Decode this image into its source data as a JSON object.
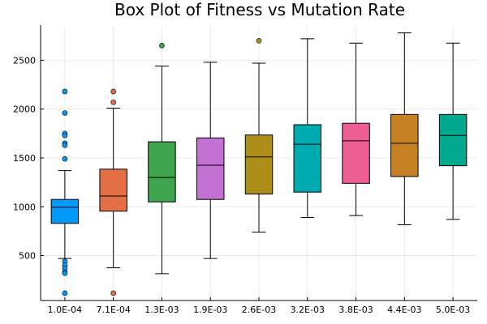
{
  "chart_data": {
    "type": "box",
    "title": "Box Plot of Fitness vs Mutation Rate",
    "xlabel": "",
    "ylabel": "",
    "ylim": [
      40,
      2860
    ],
    "yticks": [
      500,
      1000,
      1500,
      2000,
      2500
    ],
    "grid": true,
    "legend": "none",
    "categories": [
      "1.0E-04",
      "7.1E-04",
      "1.3E-03",
      "1.9E-03",
      "2.6E-03",
      "3.2E-03",
      "3.8E-03",
      "4.4E-03",
      "5.0E-03"
    ],
    "series": [
      {
        "color": "#009AFA",
        "whisker_low": 470,
        "q1": 830,
        "median": 995,
        "q3": 1075,
        "whisker_high": 1370,
        "outliers": [
          2180,
          1960,
          1750,
          1730,
          1650,
          1630,
          1490,
          440,
          400,
          370,
          330,
          320,
          115
        ]
      },
      {
        "color": "#E36F47",
        "whisker_low": 375,
        "q1": 955,
        "median": 1110,
        "q3": 1385,
        "whisker_high": 2010,
        "outliers": [
          2180,
          2070,
          115
        ]
      },
      {
        "color": "#3EA44E",
        "whisker_low": 315,
        "q1": 1050,
        "median": 1300,
        "q3": 1665,
        "whisker_high": 2440,
        "outliers": [
          2650
        ]
      },
      {
        "color": "#C371D2",
        "whisker_low": 470,
        "q1": 1075,
        "median": 1425,
        "q3": 1705,
        "whisker_high": 2480,
        "outliers": []
      },
      {
        "color": "#AC8E18",
        "whisker_low": 740,
        "q1": 1130,
        "median": 1510,
        "q3": 1735,
        "whisker_high": 2470,
        "outliers": [
          2700
        ]
      },
      {
        "color": "#00AAAE",
        "whisker_low": 890,
        "q1": 1150,
        "median": 1640,
        "q3": 1840,
        "whisker_high": 2720,
        "outliers": []
      },
      {
        "color": "#ED5E93",
        "whisker_low": 910,
        "q1": 1240,
        "median": 1675,
        "q3": 1855,
        "whisker_high": 2675,
        "outliers": []
      },
      {
        "color": "#C68125",
        "whisker_low": 815,
        "q1": 1310,
        "median": 1650,
        "q3": 1945,
        "whisker_high": 2780,
        "outliers": []
      },
      {
        "color": "#00A98D",
        "whisker_low": 870,
        "q1": 1420,
        "median": 1730,
        "q3": 1945,
        "whisker_high": 2675,
        "outliers": []
      }
    ]
  }
}
